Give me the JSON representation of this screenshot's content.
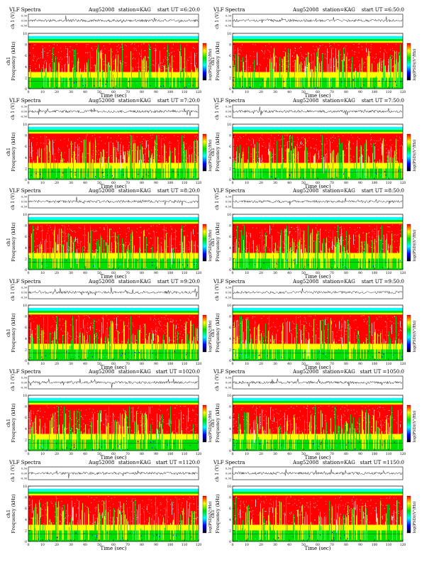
{
  "shared": {
    "left_title": "VLF Spectra",
    "date": "Aug52008",
    "station": "station=KAG",
    "ch_label": "ch 1 (V)",
    "freq_label": "Frequency (kHz)",
    "ch_tag": "ch1",
    "xlabel": "Time (sec)",
    "cbar_label": "log(PSD)(V²/Hz)",
    "trace_ticks": [
      "0.30",
      "0.00",
      "-0.30"
    ],
    "freq_ticks": [
      "10",
      "8",
      "6",
      "4",
      "2",
      "0"
    ],
    "time_ticks": [
      "0",
      "10",
      "20",
      "30",
      "40",
      "50",
      "60",
      "70",
      "80",
      "90",
      "100",
      "110",
      "120"
    ]
  },
  "colors": {
    "background": "#ffffff",
    "axis": "#000000",
    "colormap": [
      "#ff0000",
      "#ffff00",
      "#00e000",
      "#00ffff",
      "#0000ff",
      "#000000"
    ]
  },
  "chart_data": [
    {
      "type": "heatmap",
      "start_ut": "start UT =6:20:0",
      "xlabel": "Time (sec)",
      "ylabel": "Frequency (kHz)",
      "xlim": [
        0,
        120
      ],
      "ylim": [
        0,
        10
      ],
      "trace_ylim": [
        -0.3,
        0.3
      ]
    },
    {
      "type": "heatmap",
      "start_ut": "start UT =6:50:0",
      "xlabel": "Time (sec)",
      "ylabel": "Frequency (kHz)",
      "xlim": [
        0,
        120
      ],
      "ylim": [
        0,
        10
      ],
      "trace_ylim": [
        -0.3,
        0.3
      ]
    },
    {
      "type": "heatmap",
      "start_ut": "start UT =7:20:0",
      "xlabel": "Time (sec)",
      "ylabel": "Frequency (kHz)",
      "xlim": [
        0,
        120
      ],
      "ylim": [
        0,
        10
      ],
      "trace_ylim": [
        -0.3,
        0.3
      ]
    },
    {
      "type": "heatmap",
      "start_ut": "start UT =7:50:0",
      "xlabel": "Time (sec)",
      "ylabel": "Frequency (kHz)",
      "xlim": [
        0,
        120
      ],
      "ylim": [
        0,
        10
      ],
      "trace_ylim": [
        -0.3,
        0.3
      ]
    },
    {
      "type": "heatmap",
      "start_ut": "start UT =8:20:0",
      "xlabel": "Time (sec)",
      "ylabel": "Frequency (kHz)",
      "xlim": [
        0,
        120
      ],
      "ylim": [
        0,
        10
      ],
      "trace_ylim": [
        -0.3,
        0.3
      ]
    },
    {
      "type": "heatmap",
      "start_ut": "start UT =8:50:0",
      "xlabel": "Time (sec)",
      "ylabel": "Frequency (kHz)",
      "xlim": [
        0,
        120
      ],
      "ylim": [
        0,
        10
      ],
      "trace_ylim": [
        -0.3,
        0.3
      ]
    },
    {
      "type": "heatmap",
      "start_ut": "start UT =9:20:0",
      "xlabel": "Time (sec)",
      "ylabel": "Frequency (kHz)",
      "xlim": [
        0,
        120
      ],
      "ylim": [
        0,
        10
      ],
      "trace_ylim": [
        -0.3,
        0.3
      ]
    },
    {
      "type": "heatmap",
      "start_ut": "start UT =9:50:0",
      "xlabel": "Time (sec)",
      "ylabel": "Frequency (kHz)",
      "xlim": [
        0,
        120
      ],
      "ylim": [
        0,
        10
      ],
      "trace_ylim": [
        -0.3,
        0.3
      ]
    },
    {
      "type": "heatmap",
      "start_ut": "start UT =1020:0",
      "xlabel": "Time (sec)",
      "ylabel": "Frequency (kHz)",
      "xlim": [
        0,
        120
      ],
      "ylim": [
        0,
        10
      ],
      "trace_ylim": [
        -0.3,
        0.3
      ]
    },
    {
      "type": "heatmap",
      "start_ut": "start UT =1050:0",
      "xlabel": "Time (sec)",
      "ylabel": "Frequency (kHz)",
      "xlim": [
        0,
        120
      ],
      "ylim": [
        0,
        10
      ],
      "trace_ylim": [
        -0.3,
        0.3
      ]
    },
    {
      "type": "heatmap",
      "start_ut": "start UT =1120:0",
      "xlabel": "Time (sec)",
      "ylabel": "Frequency (kHz)",
      "xlim": [
        0,
        120
      ],
      "ylim": [
        0,
        10
      ],
      "trace_ylim": [
        -0.3,
        0.3
      ]
    },
    {
      "type": "heatmap",
      "start_ut": "start UT =1150:0",
      "xlabel": "Time (sec)",
      "ylabel": "Frequency (kHz)",
      "xlim": [
        0,
        120
      ],
      "ylim": [
        0,
        10
      ],
      "trace_ylim": [
        -0.3,
        0.3
      ]
    }
  ]
}
